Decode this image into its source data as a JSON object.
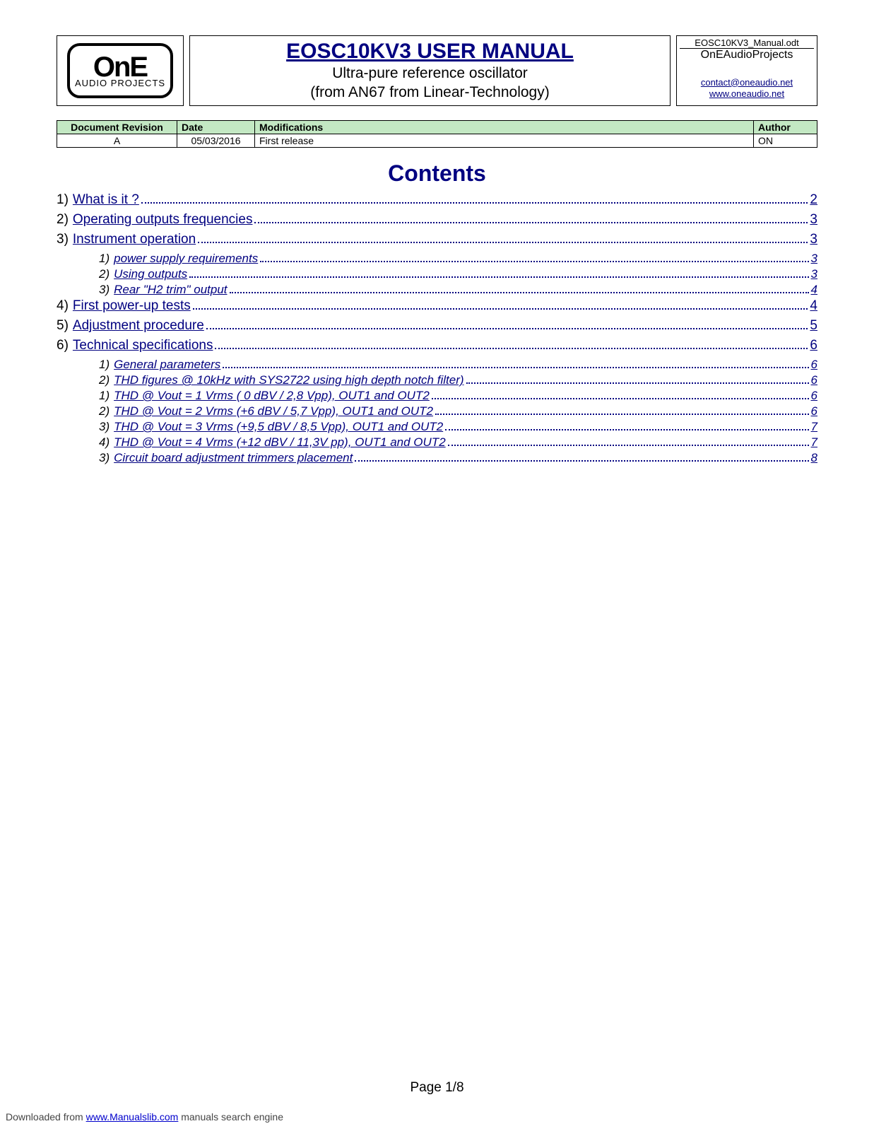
{
  "logo": {
    "line1": "OnE",
    "line2": "AUDIO PROJECTS"
  },
  "header": {
    "title": "EOSC10KV3 USER MANUAL",
    "subtitle1": "Ultra-pure reference oscillator",
    "subtitle2": "(from AN67 from Linear-Technology)"
  },
  "meta": {
    "filename": "EOSC10KV3_Manual.odt",
    "project": "OnEAudioProjects",
    "email": "contact@oneaudio.net",
    "website": "www.oneaudio.net"
  },
  "rev_table": {
    "headers": {
      "rev": "Document Revision",
      "date": "Date",
      "mods": "Modifications",
      "author": "Author"
    },
    "row": {
      "rev": "A",
      "date": "05/03/2016",
      "mods": "First release",
      "author": "ON"
    },
    "col_widths": {
      "rev": "170px",
      "date": "110px",
      "mods": "auto",
      "author": "90px"
    }
  },
  "contents_title": "Contents",
  "toc": [
    {
      "level": 1,
      "num": "1)",
      "label": "What is it ?",
      "page": "2"
    },
    {
      "level": 1,
      "num": "2)",
      "label": "Operating outputs frequencies",
      "page": "3"
    },
    {
      "level": 1,
      "num": "3)",
      "label": "Instrument operation",
      "page": "3"
    },
    {
      "level": 2,
      "num": "1)",
      "label": "power supply requirements",
      "page": "3"
    },
    {
      "level": 2,
      "num": "2)",
      "label": "Using outputs",
      "page": "3"
    },
    {
      "level": 2,
      "num": "3)",
      "label": "Rear \"H2 trim\" output",
      "page": "4"
    },
    {
      "level": 1,
      "num": "4)",
      "label": "First power-up tests",
      "page": "4"
    },
    {
      "level": 1,
      "num": "5)",
      "label": "Adjustment procedure",
      "page": "5"
    },
    {
      "level": 1,
      "num": "6)",
      "label": "Technical specifications",
      "page": "6"
    },
    {
      "level": 2,
      "num": "1)",
      "label": "General parameters",
      "page": "6"
    },
    {
      "level": 2,
      "num": "2)",
      "label": "THD figures @ 10kHz with SYS2722 using high depth notch filter)",
      "page": "6"
    },
    {
      "level": 2,
      "num": "1)",
      "label": "THD @ Vout = 1 Vrms ( 0 dBV / 2,8 Vpp), OUT1 and OUT2",
      "page": "6"
    },
    {
      "level": 2,
      "num": "2)",
      "label": "THD @ Vout = 2 Vrms (+6 dBV / 5,7 Vpp), OUT1 and OUT2",
      "page": "6"
    },
    {
      "level": 2,
      "num": "3)",
      "label": "THD @ Vout = 3 Vrms (+9,5 dBV / 8,5 Vpp), OUT1 and OUT2",
      "page": "7"
    },
    {
      "level": 2,
      "num": "4)",
      "label": "THD @ Vout = 4 Vrms (+12 dBV / 11,3V pp), OUT1 and OUT2",
      "page": "7"
    },
    {
      "level": 2,
      "num": "3)",
      "label": "Circuit board adjustment trimmers placement",
      "page": "8"
    }
  ],
  "footer": {
    "page_label": "Page 1/8",
    "download_prefix": "Downloaded from ",
    "download_link": "www.Manualslib.com",
    "download_suffix": "  manuals search engine"
  },
  "colors": {
    "heading": "#000080",
    "table_header_bg": "#c3e8c3",
    "link": "#000080"
  }
}
